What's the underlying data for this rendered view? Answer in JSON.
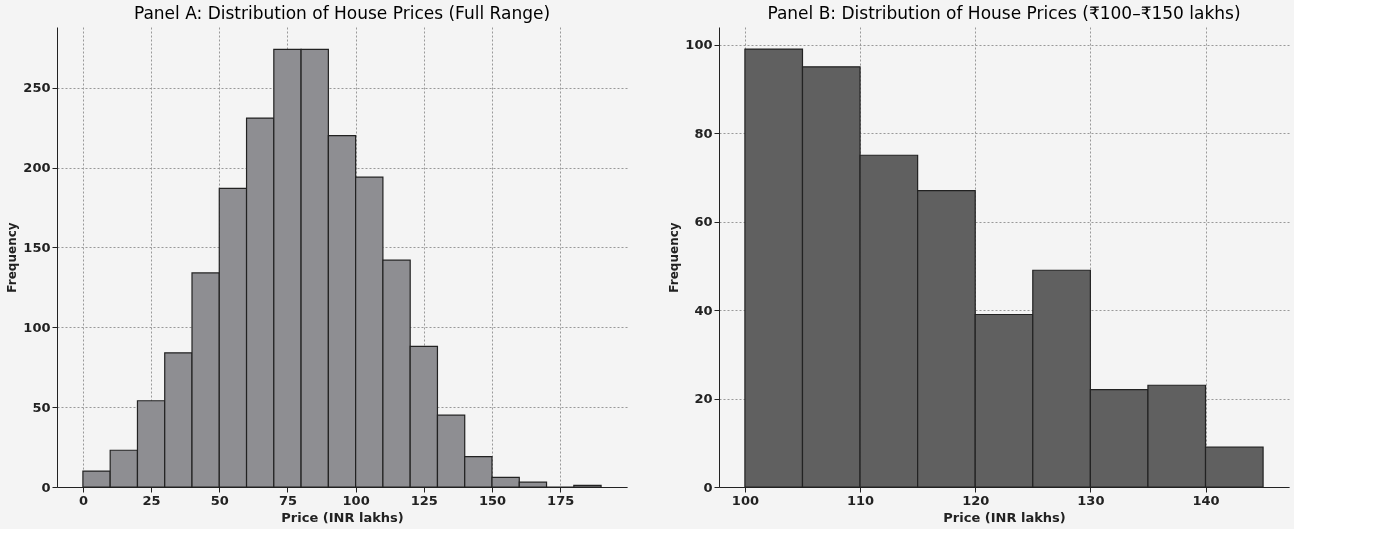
{
  "chart_data": [
    {
      "type": "histogram",
      "title": "Panel A: Distribution of House Prices (Full Range)",
      "xlabel": "Price (INR lakhs)",
      "ylabel": "Frequency",
      "bins": [
        0,
        10,
        20,
        30,
        40,
        50,
        60,
        70,
        80,
        90,
        100,
        110,
        120,
        130,
        140,
        150,
        160,
        170,
        180,
        190
      ],
      "values": [
        10,
        23,
        54,
        84,
        134,
        187,
        231,
        274,
        274,
        220,
        194,
        142,
        88,
        45,
        19,
        6,
        3,
        0,
        1
      ],
      "color": "#8e8e92",
      "xlim": [
        -9.5,
        199.5
      ],
      "ylim": [
        0,
        288
      ],
      "xticks": [
        0,
        25,
        50,
        75,
        100,
        125,
        150,
        175
      ],
      "yticks": [
        0,
        50,
        100,
        150,
        200,
        250
      ],
      "grid": true
    },
    {
      "type": "histogram",
      "title": "Panel B: Distribution of House Prices (₹100–₹150 lakhs)",
      "xlabel": "Price (INR lakhs)",
      "ylabel": "Frequency",
      "bins": [
        100,
        105,
        110,
        115,
        120,
        125,
        130,
        135,
        140,
        145
      ],
      "values": [
        99,
        95,
        75,
        67,
        39,
        49,
        22,
        23,
        9
      ],
      "color": "#606060",
      "xlim": [
        97.75,
        147.25
      ],
      "ylim": [
        0,
        104
      ],
      "xticks": [
        100,
        110,
        120,
        130,
        140
      ],
      "yticks": [
        0,
        20,
        40,
        60,
        80,
        100
      ],
      "grid": true
    }
  ]
}
